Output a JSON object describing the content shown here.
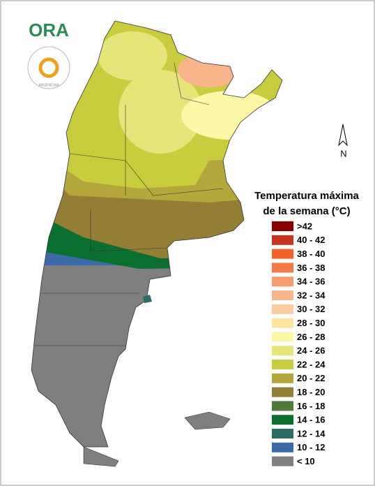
{
  "logo": {
    "text": "ORA"
  },
  "seal": {
    "text": "ARGENTINA"
  },
  "north_arrow": {
    "label": "N"
  },
  "legend": {
    "title": [
      "Temperatura máxima",
      "de la semana (°C)"
    ],
    "items": [
      {
        "label": ">42",
        "color": "#8b0000"
      },
      {
        "label": "40 - 42",
        "color": "#c8351e"
      },
      {
        "label": "38 - 40",
        "color": "#f4612a"
      },
      {
        "label": "36 - 38",
        "color": "#f47a45"
      },
      {
        "label": "34 - 36",
        "color": "#f69c6e"
      },
      {
        "label": "32 - 34",
        "color": "#f8b48a"
      },
      {
        "label": "30 - 32",
        "color": "#fbcc9e"
      },
      {
        "label": "28 - 30",
        "color": "#fde59d"
      },
      {
        "label": "26 - 28",
        "color": "#fbf7a6"
      },
      {
        "label": "24 - 26",
        "color": "#e6e57a"
      },
      {
        "label": "22 - 24",
        "color": "#c9cc3c"
      },
      {
        "label": "20 - 22",
        "color": "#b3a63a"
      },
      {
        "label": "18 - 20",
        "color": "#947d35"
      },
      {
        "label": "16 - 18",
        "color": "#4f7a3a"
      },
      {
        "label": "14 - 16",
        "color": "#0a6e2e"
      },
      {
        "label": "12 - 14",
        "color": "#2e6b62"
      },
      {
        "label": "10 - 12",
        "color": "#3c6aa8"
      },
      {
        "label": "< 10",
        "color": "#7f7f7f"
      }
    ]
  }
}
